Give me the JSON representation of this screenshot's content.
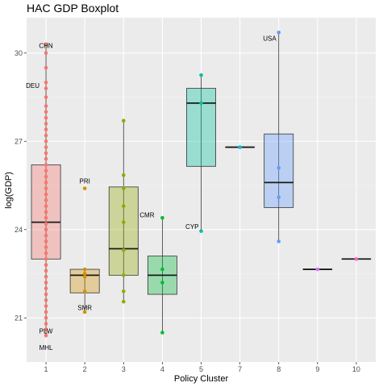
{
  "chart_data": {
    "type": "boxplot",
    "title": "HAC GDP Boxplot",
    "xlabel": "Policy Cluster",
    "ylabel": "log(GDP)",
    "ylim": [
      19.5,
      31.2
    ],
    "yticks": [
      21,
      24,
      27,
      30
    ],
    "grid": true,
    "legend": "none",
    "background": "#ebebeb",
    "categories": [
      "1",
      "2",
      "3",
      "4",
      "5",
      "7",
      "8",
      "9",
      "10"
    ],
    "boxes": [
      {
        "cluster": "1",
        "color": "#f8766d",
        "q1": 23.0,
        "median": 24.25,
        "q3": 26.2,
        "min": 20.4,
        "max": 30.3,
        "points": [
          30.3,
          30.0,
          29.5,
          29.0,
          28.8,
          28.5,
          28.2,
          28.0,
          27.8,
          27.6,
          27.4,
          27.2,
          27.0,
          26.8,
          26.6,
          26.4,
          26.2,
          26.0,
          25.8,
          25.6,
          25.4,
          25.2,
          25.0,
          24.8,
          24.6,
          24.4,
          24.2,
          24.0,
          23.8,
          23.6,
          23.4,
          23.2,
          23.0,
          22.8,
          22.6,
          22.4,
          22.2,
          22.0,
          21.8,
          21.6,
          21.4,
          21.2,
          21.0,
          20.8,
          20.6,
          20.4
        ]
      },
      {
        "cluster": "2",
        "color": "#d39200",
        "q1": 21.85,
        "median": 22.45,
        "q3": 22.65,
        "min": 21.2,
        "max": 22.65,
        "points": [
          25.4,
          22.65,
          22.5,
          22.4,
          21.9,
          21.2
        ]
      },
      {
        "cluster": "3",
        "color": "#93aa00",
        "q1": 22.45,
        "median": 23.35,
        "q3": 25.45,
        "min": 21.55,
        "max": 27.7,
        "points": [
          27.7,
          25.85,
          25.4,
          24.8,
          24.25,
          23.3,
          22.45,
          21.9,
          21.55
        ]
      },
      {
        "cluster": "4",
        "color": "#00ba38",
        "q1": 21.8,
        "median": 22.45,
        "q3": 23.1,
        "min": 20.5,
        "max": 24.4,
        "points": [
          24.4,
          22.65,
          22.2,
          20.5
        ]
      },
      {
        "cluster": "5",
        "color": "#00c19f",
        "q1": 26.15,
        "median": 28.3,
        "q3": 28.8,
        "min": 23.95,
        "max": 29.25,
        "points": [
          29.25,
          28.3,
          23.95
        ]
      },
      {
        "cluster": "7",
        "color": "#00b9e3",
        "q1": 26.8,
        "median": 26.8,
        "q3": 26.8,
        "min": 26.8,
        "max": 26.8,
        "points": [
          26.8
        ]
      },
      {
        "cluster": "8",
        "color": "#619cff",
        "q1": 24.75,
        "median": 25.6,
        "q3": 27.25,
        "min": 23.6,
        "max": 30.7,
        "points": [
          30.7,
          26.1,
          25.1,
          23.6
        ]
      },
      {
        "cluster": "9",
        "color": "#db72fb",
        "q1": 22.65,
        "median": 22.65,
        "q3": 22.65,
        "min": 22.65,
        "max": 22.65,
        "points": [
          22.65
        ]
      },
      {
        "cluster": "10",
        "color": "#ff61c3",
        "q1": 23.0,
        "median": 23.0,
        "q3": 23.0,
        "min": 23.0,
        "max": 23.0,
        "points": [
          23.0
        ]
      }
    ],
    "annotations": [
      {
        "text": "CHN",
        "cluster": "1",
        "y": 30.25
      },
      {
        "text": "DEU",
        "cluster": "1",
        "y": 28.9
      },
      {
        "text": "PLW",
        "cluster": "1",
        "y": 20.55
      },
      {
        "text": "MHL",
        "cluster": "1",
        "y": 20.0
      },
      {
        "text": "PRI",
        "cluster": "2",
        "y": 25.65
      },
      {
        "text": "SMR",
        "cluster": "2",
        "y": 21.35
      },
      {
        "text": "CMR",
        "cluster": "3",
        "y": 24.5
      },
      {
        "text": "CYP",
        "cluster": "5",
        "y": 24.1
      },
      {
        "text": "USA",
        "cluster": "8",
        "y": 30.5
      }
    ]
  }
}
